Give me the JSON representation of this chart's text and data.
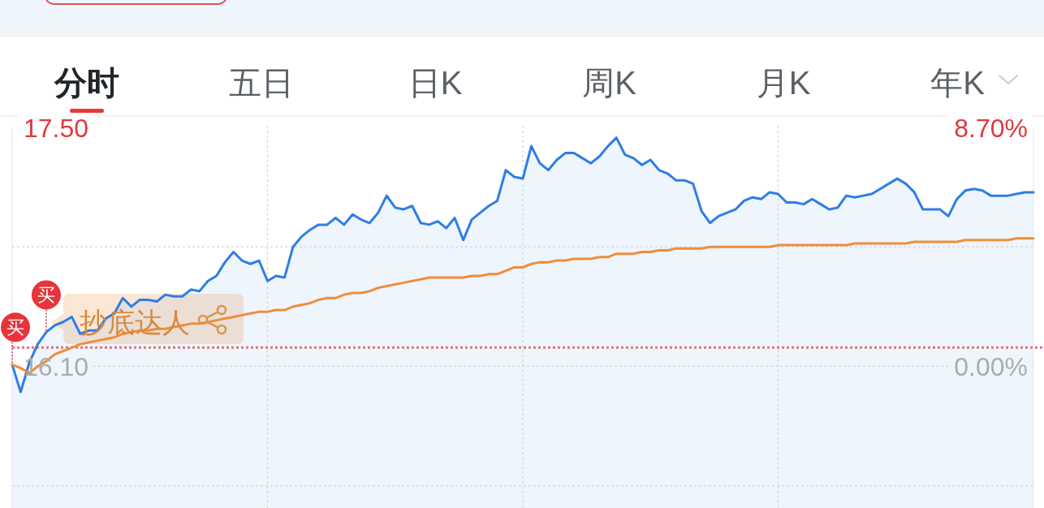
{
  "chart_data": {
    "type": "line",
    "title": "分时",
    "annotations": [
      "五日",
      "日K",
      "周K",
      "月K",
      "年K",
      "抄底达人",
      {
        "text": "买",
        "y": 16.11
      },
      {
        "text": "买",
        "y": 16.3
      }
    ],
    "categories": [
      null,
      null,
      null,
      null,
      null,
      null,
      null,
      null,
      null,
      null,
      null,
      null,
      null,
      null,
      null,
      null,
      null,
      null,
      null,
      null,
      null,
      null,
      null,
      null,
      null,
      null,
      null,
      null,
      null,
      null,
      null,
      null,
      null,
      null,
      null,
      null,
      null,
      null,
      null,
      null,
      null,
      null,
      null,
      null,
      null,
      null,
      null,
      null,
      null,
      null,
      null,
      null,
      null,
      null,
      null,
      null,
      null,
      null,
      null,
      null,
      null,
      null,
      null,
      null,
      null,
      null,
      null,
      null,
      null,
      null,
      null,
      null,
      null,
      null,
      null,
      null,
      null,
      null,
      null,
      null,
      null,
      null,
      null,
      null,
      null,
      null,
      null,
      null,
      null,
      null,
      null,
      null,
      null,
      null,
      null,
      null,
      null,
      null,
      null,
      null,
      null,
      null,
      null,
      null,
      null,
      null,
      null,
      null,
      null,
      null,
      null,
      null,
      null,
      null,
      null,
      null,
      null,
      null,
      null,
      null,
      null
    ],
    "series": [
      {
        "type": "area",
        "color": "#2e7de6",
        "values": [
          16.11,
          15.95,
          16.12,
          16.23,
          16.3,
          16.34,
          16.36,
          16.39,
          16.29,
          16.31,
          16.31,
          16.38,
          16.41,
          16.5,
          16.45,
          16.49,
          16.49,
          16.48,
          16.52,
          16.51,
          16.51,
          16.55,
          16.54,
          16.6,
          16.63,
          16.71,
          16.77,
          16.72,
          16.7,
          16.72,
          16.6,
          16.63,
          16.62,
          16.8,
          16.86,
          16.9,
          16.93,
          16.93,
          16.97,
          16.93,
          16.99,
          16.96,
          16.94,
          17.0,
          17.1,
          17.03,
          17.02,
          17.04,
          16.94,
          16.93,
          16.95,
          16.91,
          16.97,
          16.84,
          16.96,
          17.0,
          17.04,
          17.07,
          17.25,
          17.21,
          17.2,
          17.39,
          17.29,
          17.25,
          17.31,
          17.35,
          17.35,
          17.32,
          17.29,
          17.33,
          17.39,
          17.44,
          17.34,
          17.32,
          17.28,
          17.31,
          17.25,
          17.23,
          17.19,
          17.19,
          17.17,
          17.01,
          16.94,
          16.98,
          17.0,
          17.02,
          17.07,
          17.09,
          17.08,
          17.12,
          17.11,
          17.06,
          17.06,
          17.05,
          17.08,
          17.05,
          17.02,
          17.03,
          17.1,
          17.09,
          17.1,
          17.11,
          17.14,
          17.17,
          17.2,
          17.17,
          17.12,
          17.02,
          17.02,
          17.02,
          16.98,
          17.08,
          17.13,
          17.14,
          17.13,
          17.1,
          17.1,
          17.1,
          17.11,
          17.12,
          17.12
        ]
      },
      {
        "color": "#ef8d3a",
        "values": [
          16.11,
          16.09,
          16.06,
          16.1,
          16.13,
          16.17,
          16.19,
          16.21,
          16.23,
          16.24,
          16.25,
          16.26,
          16.27,
          16.29,
          16.3,
          16.31,
          16.31,
          16.32,
          16.32,
          16.33,
          16.34,
          16.35,
          16.35,
          16.36,
          16.37,
          16.38,
          16.39,
          16.4,
          16.41,
          16.42,
          16.42,
          16.43,
          16.43,
          16.45,
          16.46,
          16.47,
          16.49,
          16.5,
          16.5,
          16.52,
          16.53,
          16.53,
          16.54,
          16.56,
          16.57,
          16.58,
          16.59,
          16.6,
          16.61,
          16.62,
          16.62,
          16.62,
          16.62,
          16.62,
          16.63,
          16.63,
          16.64,
          16.64,
          16.66,
          16.68,
          16.68,
          16.7,
          16.71,
          16.71,
          16.72,
          16.72,
          16.73,
          16.73,
          16.73,
          16.74,
          16.74,
          16.76,
          16.76,
          16.76,
          16.77,
          16.77,
          16.78,
          16.78,
          16.79,
          16.79,
          16.79,
          16.79,
          16.8,
          16.8,
          16.8,
          16.8,
          16.8,
          16.8,
          16.8,
          16.8,
          16.81,
          16.81,
          16.81,
          16.81,
          16.81,
          16.81,
          16.81,
          16.81,
          16.81,
          16.82,
          16.82,
          16.82,
          16.82,
          16.82,
          16.82,
          16.82,
          16.83,
          16.83,
          16.83,
          16.83,
          16.83,
          16.83,
          16.84,
          16.84,
          16.84,
          16.84,
          16.84,
          16.84,
          16.85,
          16.85,
          16.85
        ]
      }
    ],
    "ylim": [
      15.27,
      17.5
    ],
    "yticks": [
      {
        "value": 17.5,
        "label": "17.50"
      },
      {
        "value": 16.8,
        "label": null
      },
      {
        "value": 16.1,
        "label": "16.10"
      },
      {
        "value": 15.4,
        "label": null
      }
    ],
    "y2lim": [
      -5.16,
      8.7
    ],
    "y2ticks": [
      {
        "value": 8.7,
        "label": "8.70%"
      },
      {
        "value": 0,
        "label": "0.00%"
      }
    ],
    "ref_lines": [
      {
        "axis": "y",
        "value": 16.21,
        "color": "#e37474",
        "line_style": "dotted"
      }
    ],
    "grid": true,
    "tick_labels": "y"
  }
}
